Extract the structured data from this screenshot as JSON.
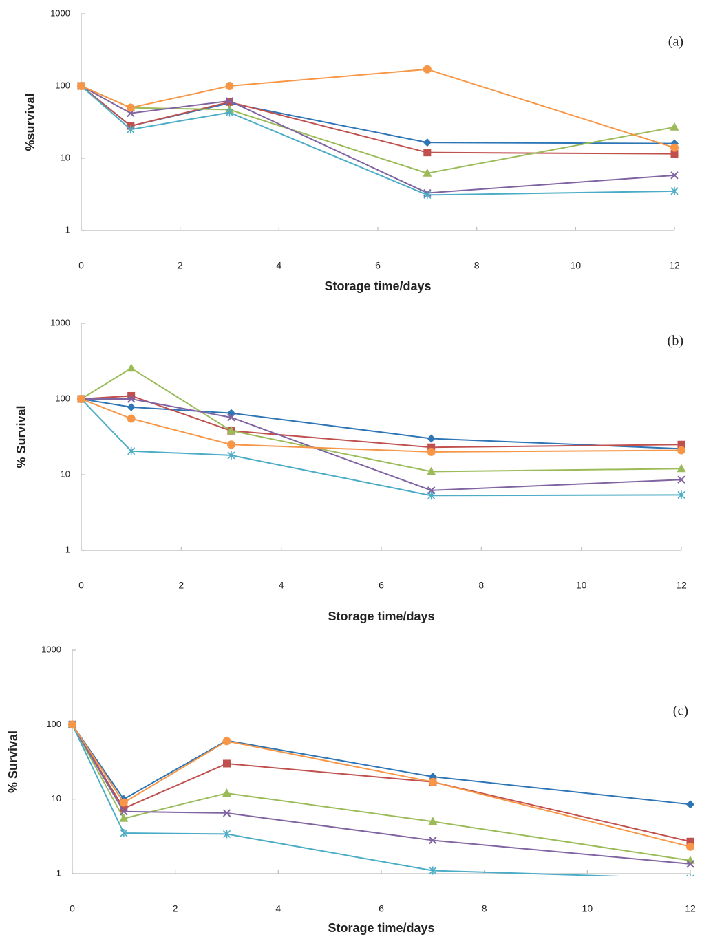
{
  "chart_data": [
    {
      "type": "line",
      "panel_label": "(a)",
      "x_label": "Storage time/days",
      "y_label": "%survival",
      "x": [
        0,
        1,
        3,
        7,
        12
      ],
      "xlim": [
        0,
        12
      ],
      "xticks": [
        0,
        2,
        4,
        6,
        8,
        10,
        12
      ],
      "ylim": [
        1,
        1000
      ],
      "yticks": [
        1,
        10,
        100,
        1000
      ],
      "yscale": "log",
      "grid": false,
      "series": [
        {
          "color": "#2e75b6",
          "marker": "diamond",
          "values": [
            100,
            28,
            58,
            16.5,
            16
          ]
        },
        {
          "color": "#c0504d",
          "marker": "square",
          "values": [
            100,
            28,
            60,
            12,
            11.5
          ]
        },
        {
          "color": "#9bbb59",
          "marker": "triangle",
          "values": [
            100,
            50,
            47,
            6.2,
            27
          ]
        },
        {
          "color": "#8064a2",
          "marker": "x",
          "values": [
            100,
            42,
            62,
            3.3,
            5.8
          ]
        },
        {
          "color": "#4bacc6",
          "marker": "star",
          "values": [
            100,
            25,
            43,
            3.1,
            3.5
          ]
        },
        {
          "color": "#f79646",
          "marker": "circle",
          "values": [
            100,
            50,
            100,
            170,
            14
          ]
        }
      ]
    },
    {
      "type": "line",
      "panel_label": "(b)",
      "x_label": "Storage time/days",
      "y_label": "% Survival",
      "x": [
        0,
        1,
        3,
        7,
        12
      ],
      "xlim": [
        0,
        12
      ],
      "xticks": [
        0,
        2,
        4,
        6,
        8,
        10,
        12
      ],
      "ylim": [
        1,
        1000
      ],
      "yticks": [
        1,
        10,
        100,
        1000
      ],
      "yscale": "log",
      "grid": false,
      "series": [
        {
          "color": "#2e75b6",
          "marker": "diamond",
          "values": [
            100,
            78,
            65,
            30,
            22
          ]
        },
        {
          "color": "#c0504d",
          "marker": "square",
          "values": [
            100,
            110,
            38,
            23,
            25
          ]
        },
        {
          "color": "#9bbb59",
          "marker": "triangle",
          "values": [
            100,
            255,
            38,
            11,
            12
          ]
        },
        {
          "color": "#8064a2",
          "marker": "x",
          "values": [
            100,
            100,
            57,
            6.2,
            8.6
          ]
        },
        {
          "color": "#4bacc6",
          "marker": "star",
          "values": [
            100,
            20.5,
            18,
            5.3,
            5.4
          ]
        },
        {
          "color": "#f79646",
          "marker": "circle",
          "values": [
            100,
            55,
            25,
            20,
            21
          ]
        }
      ]
    },
    {
      "type": "line",
      "panel_label": "(c)",
      "x_label": "Storage time/days",
      "y_label": "% Survival",
      "x": [
        0,
        1,
        3,
        7,
        12
      ],
      "xlim": [
        0,
        12
      ],
      "xticks": [
        0,
        2,
        4,
        6,
        8,
        10,
        12
      ],
      "ylim": [
        1,
        1000
      ],
      "yticks": [
        1,
        10,
        100,
        1000
      ],
      "yscale": "log",
      "grid": false,
      "series": [
        {
          "color": "#2e75b6",
          "marker": "diamond",
          "values": [
            100,
            10,
            61,
            20,
            8.5
          ]
        },
        {
          "color": "#c0504d",
          "marker": "square",
          "values": [
            100,
            7.5,
            30,
            17,
            2.7
          ]
        },
        {
          "color": "#9bbb59",
          "marker": "triangle",
          "values": [
            100,
            5.5,
            12,
            5,
            1.5
          ]
        },
        {
          "color": "#8064a2",
          "marker": "x",
          "values": [
            100,
            6.8,
            6.5,
            2.8,
            1.35
          ]
        },
        {
          "color": "#4bacc6",
          "marker": "star",
          "values": [
            100,
            3.5,
            3.4,
            1.1,
            0.86
          ]
        },
        {
          "color": "#f79646",
          "marker": "circle",
          "values": [
            100,
            9,
            60,
            17,
            2.3
          ]
        }
      ]
    }
  ]
}
